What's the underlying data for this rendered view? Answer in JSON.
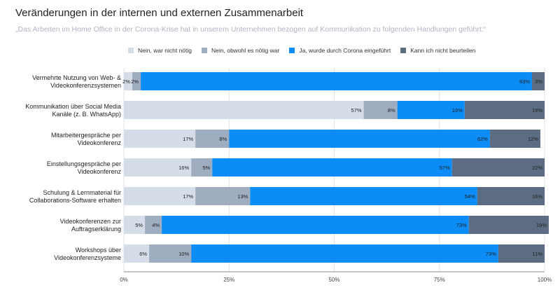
{
  "chart_data": {
    "type": "bar",
    "orientation": "horizontal",
    "stacked": "percent",
    "title": "Veränderungen in der internen und externen Zusammenarbeit",
    "subtitle": "„Das Arbeiten im Home Office in der Corona-Krise hat in unserem Unternehmen bezogen auf Kommunikation zu folgenden Handlungen geführt:“",
    "categories": [
      [
        "Vermehrte Nutzung von Web- &",
        "Videokonferenzsystemen"
      ],
      [
        "Kommunikation über Social Media",
        "Kanäle (z. B. WhatsApp)"
      ],
      [
        "Mitarbeitergespräche per",
        "Videokonferenz"
      ],
      [
        "Einstellungsgespräche per",
        "Videokonferenz"
      ],
      [
        "Schulung & Lernmaterial für",
        "Collaborations-Software erhalten"
      ],
      [
        "Videokonferenzen zur",
        "Auftragserklärung"
      ],
      [
        "Workshops über",
        "Videokonferenzsysteme"
      ]
    ],
    "series": [
      {
        "name": "Nein, war nicht nötig",
        "color": "#d4dde8",
        "values": [
          2,
          57,
          17,
          16,
          17,
          5,
          6
        ]
      },
      {
        "name": "Nein, obwohl es nötig war",
        "color": "#9fadc1",
        "values": [
          2,
          8,
          8,
          5,
          13,
          4,
          10
        ]
      },
      {
        "name": "Ja, wurde durch Corona eingeführt",
        "color": "#0b8cf6",
        "values": [
          93,
          16,
          62,
          57,
          54,
          73,
          73
        ]
      },
      {
        "name": "Kann ich nicht beurteilen",
        "color": "#5c6c82",
        "values": [
          3,
          19,
          12,
          22,
          16,
          19,
          11
        ]
      }
    ],
    "x_ticks": [
      "0%",
      "25%",
      "50%",
      "75%",
      "100%"
    ],
    "xlim": [
      0,
      100
    ],
    "legend_position": "top",
    "grid": true
  }
}
